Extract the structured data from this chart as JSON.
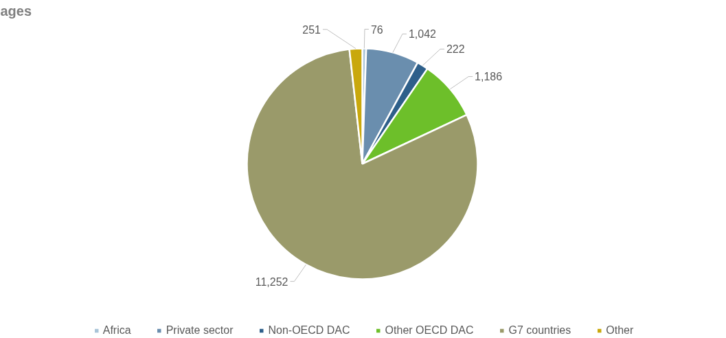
{
  "chart_data": {
    "type": "pie",
    "title": "ages",
    "categories": [
      "Africa",
      "Private sector",
      "Non-OECD DAC",
      "Other OECD DAC",
      "G7 countries",
      "Other"
    ],
    "values": [
      76,
      1042,
      222,
      1186,
      11252,
      251
    ],
    "colors": [
      "#a9c4d8",
      "#6a8eae",
      "#2e5f8a",
      "#6dbf2a",
      "#9a9a6a",
      "#c9a80c"
    ],
    "value_labels": [
      "76",
      "1,042",
      "222",
      "1,186",
      "11,252",
      "251"
    ],
    "legend": "bottom"
  }
}
